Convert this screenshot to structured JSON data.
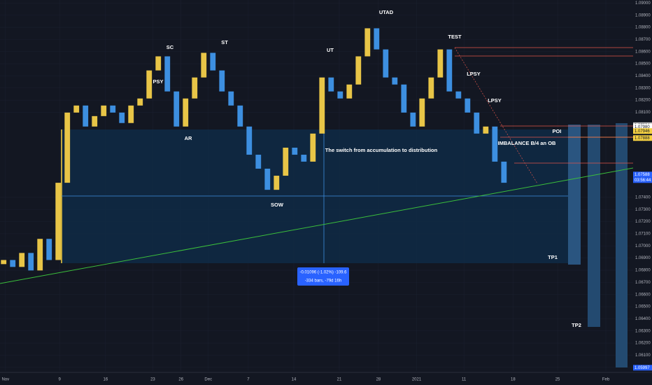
{
  "chart_data": {
    "type": "candlestick",
    "open": [
      1.0685,
      1.06884,
      1.06827,
      1.06942,
      1.06798,
      1.07058,
      1.06884,
      1.0752,
      1.08098,
      1.08156,
      1.07983,
      1.08069,
      1.08156,
      1.08098,
      1.08012,
      1.08156,
      1.08214,
      1.08445,
      1.08561,
      1.08272,
      1.07983,
      1.08214,
      1.08387,
      1.0859,
      1.08445,
      1.08272,
      1.08156,
      1.07983,
      1.07751,
      1.07636,
      1.07462,
      1.07578,
      1.07809,
      1.07751,
      1.07694,
      1.07925,
      1.08387,
      1.08272,
      1.08214,
      1.08329,
      1.08561,
      1.08792,
      1.08618,
      1.08387,
      1.08329,
      1.08098,
      1.07983,
      1.08214,
      1.08387,
      1.08618,
      1.08272,
      1.08214,
      1.08098,
      1.07925,
      1.07983,
      1.07694
    ],
    "close": [
      1.06884,
      1.06827,
      1.06942,
      1.06798,
      1.07058,
      1.06884,
      1.0752,
      1.08098,
      1.08156,
      1.07983,
      1.08069,
      1.08156,
      1.08098,
      1.08012,
      1.08156,
      1.08214,
      1.08445,
      1.08561,
      1.08272,
      1.07983,
      1.08214,
      1.08387,
      1.0859,
      1.08445,
      1.08272,
      1.08156,
      1.07983,
      1.07751,
      1.07636,
      1.07462,
      1.07578,
      1.07809,
      1.07751,
      1.07694,
      1.07925,
      1.08387,
      1.08272,
      1.08214,
      1.08329,
      1.08561,
      1.08792,
      1.08618,
      1.08387,
      1.08329,
      1.08098,
      1.07983,
      1.08214,
      1.08387,
      1.08618,
      1.08272,
      1.08214,
      1.08098,
      1.07925,
      1.07983,
      1.07694,
      1.0752
    ],
    "up_color": "#e8c547",
    "down_color": "#3d8fe0",
    "xlim": [
      -0.4,
      69.2
    ],
    "xticks": [
      {
        "value": 0.2,
        "label": "Nov"
      },
      {
        "value": 6.15,
        "label": "9"
      },
      {
        "value": 11.2,
        "label": "16"
      },
      {
        "value": 16.4,
        "label": "23"
      },
      {
        "value": 19.5,
        "label": "26"
      },
      {
        "value": 22.5,
        "label": "Dec"
      },
      {
        "value": 26.9,
        "label": "7"
      },
      {
        "value": 31.9,
        "label": "14"
      },
      {
        "value": 36.9,
        "label": "21"
      },
      {
        "value": 41.2,
        "label": "28"
      },
      {
        "value": 45.4,
        "label": "2021"
      },
      {
        "value": 50.6,
        "label": "11"
      },
      {
        "value": 56,
        "label": "18"
      },
      {
        "value": 60.9,
        "label": "25"
      },
      {
        "value": 66.2,
        "label": "Feb"
      }
    ],
    "ylim": [
      1.0597,
      1.09025
    ],
    "yticks": [
      {
        "value": 1.09,
        "label": "1.09000"
      },
      {
        "value": 1.089,
        "label": "1.08900"
      },
      {
        "value": 1.088,
        "label": "1.08800"
      },
      {
        "value": 1.087,
        "label": "1.08700"
      },
      {
        "value": 1.086,
        "label": "1.08600"
      },
      {
        "value": 1.085,
        "label": "1.08500"
      },
      {
        "value": 1.084,
        "label": "1.08400"
      },
      {
        "value": 1.083,
        "label": "1.08300"
      },
      {
        "value": 1.082,
        "label": "1.08200"
      },
      {
        "value": 1.081,
        "label": "1.08100"
      },
      {
        "value": 1.074,
        "label": "1.07400"
      },
      {
        "value": 1.073,
        "label": "1.07300"
      },
      {
        "value": 1.072,
        "label": "1.07200"
      },
      {
        "value": 1.071,
        "label": "1.07100"
      },
      {
        "value": 1.07,
        "label": "1.07000"
      },
      {
        "value": 1.069,
        "label": "1.06900"
      },
      {
        "value": 1.068,
        "label": "1.06800"
      },
      {
        "value": 1.067,
        "label": "1.06700"
      },
      {
        "value": 1.066,
        "label": "1.06600"
      },
      {
        "value": 1.065,
        "label": "1.06500"
      },
      {
        "value": 1.064,
        "label": "1.06400"
      },
      {
        "value": 1.063,
        "label": "1.06300"
      },
      {
        "value": 1.062,
        "label": "1.06200"
      },
      {
        "value": 1.061,
        "label": "1.06100"
      },
      {
        "value": 1.06,
        "label": "1.06000"
      }
    ],
    "price_labels": [
      {
        "value": 1.07994,
        "label": "1.07994",
        "color": "#c9c9c9"
      },
      {
        "value": 1.07983,
        "label": "1.07983",
        "color": "#ffffff"
      },
      {
        "value": 1.07947,
        "label": "1.07947",
        "color": "#f5d142"
      },
      {
        "value": 1.0798,
        "label": "1.07980",
        "color": "#ffffff"
      },
      {
        "value": 1.07946,
        "label": "1.07946",
        "color": "#f5d142"
      },
      {
        "value": 1.07888,
        "label": "1.07888",
        "color": "#f5d142"
      },
      {
        "value": 1.07588,
        "label": "1.07588",
        "color": "#2962ff"
      },
      {
        "value": 1.05997,
        "label": "1.05997",
        "color": "#2962ff"
      }
    ],
    "countdown": "03:56:44"
  },
  "annotations": [
    "PSY",
    "SC",
    "AR",
    "ST",
    "SOW",
    "UT",
    "UTAD",
    "TEST",
    "LPSY",
    "LPSY",
    "POI",
    "IMBALANCE B/4 an OB",
    "TP1",
    "TP2",
    "The switch from accumulation to distribution"
  ],
  "measure": [
    "-0.01096 (-1.02%) -109.6",
    "-334 bars, -79d 16h"
  ]
}
